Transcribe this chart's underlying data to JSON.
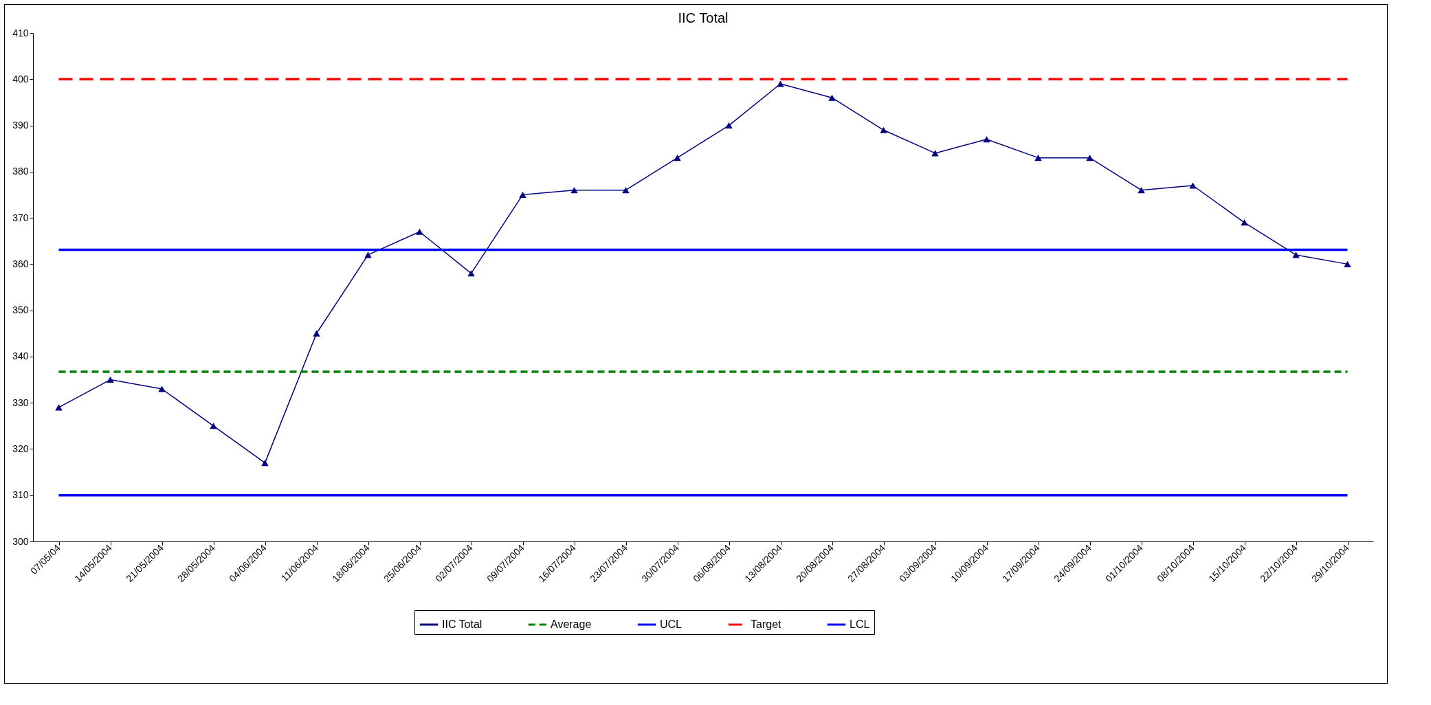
{
  "chart_data": {
    "type": "line",
    "title": "IIC Total",
    "categories": [
      "07/05/04",
      "14/05/2004",
      "21/05/2004",
      "28/05/2004",
      "04/06/2004",
      "11/06/2004",
      "18/06/2004",
      "25/06/2004",
      "02/07/2004",
      "09/07/2004",
      "16/07/2004",
      "23/07/2004",
      "30/07/2004",
      "06/08/2004",
      "13/08/2004",
      "20/08/2004",
      "27/08/2004",
      "03/09/2004",
      "10/09/2004",
      "17/09/2004",
      "24/09/2004",
      "01/10/2004",
      "08/10/2004",
      "15/10/2004",
      "22/10/2004",
      "29/10/2004"
    ],
    "series": [
      {
        "name": "IIC Total",
        "color": "#000080",
        "marker": "triangle",
        "line_style": "solid",
        "values": [
          329,
          335,
          333,
          325,
          317,
          345,
          362,
          367,
          358,
          375,
          376,
          376,
          383,
          390,
          399,
          396,
          389,
          384,
          387,
          383,
          383,
          376,
          377,
          369,
          362,
          360
        ]
      },
      {
        "name": "Average",
        "color": "#008000",
        "marker": "none",
        "line_style": "dotted",
        "values": [
          336.7,
          336.7,
          336.7,
          336.7,
          336.7,
          336.7,
          336.7,
          336.7,
          336.7,
          336.7,
          336.7,
          336.7,
          336.7,
          336.7,
          336.7,
          336.7,
          336.7,
          336.7,
          336.7,
          336.7,
          336.7,
          336.7,
          336.7,
          336.7,
          336.7,
          336.7
        ]
      },
      {
        "name": "UCL",
        "color": "#0000ff",
        "marker": "none",
        "line_style": "solid",
        "values": [
          363.1,
          363.1,
          363.1,
          363.1,
          363.1,
          363.1,
          363.1,
          363.1,
          363.1,
          363.1,
          363.1,
          363.1,
          363.1,
          363.1,
          363.1,
          363.1,
          363.1,
          363.1,
          363.1,
          363.1,
          363.1,
          363.1,
          363.1,
          363.1,
          363.1,
          363.1
        ]
      },
      {
        "name": "Target",
        "color": "#ff0000",
        "marker": "none",
        "line_style": "dashed",
        "values": [
          400,
          400,
          400,
          400,
          400,
          400,
          400,
          400,
          400,
          400,
          400,
          400,
          400,
          400,
          400,
          400,
          400,
          400,
          400,
          400,
          400,
          400,
          400,
          400,
          400,
          400
        ]
      },
      {
        "name": "LCL",
        "color": "#0000ff",
        "marker": "none",
        "line_style": "solid",
        "values": [
          310,
          310,
          310,
          310,
          310,
          310,
          310,
          310,
          310,
          310,
          310,
          310,
          310,
          310,
          310,
          310,
          310,
          310,
          310,
          310,
          310,
          310,
          310,
          310,
          310,
          310
        ]
      }
    ],
    "ylim": [
      300,
      410
    ],
    "yticks": [
      300,
      310,
      320,
      330,
      340,
      350,
      360,
      370,
      380,
      390,
      400,
      410
    ],
    "grid": false,
    "legend": "bottom"
  }
}
